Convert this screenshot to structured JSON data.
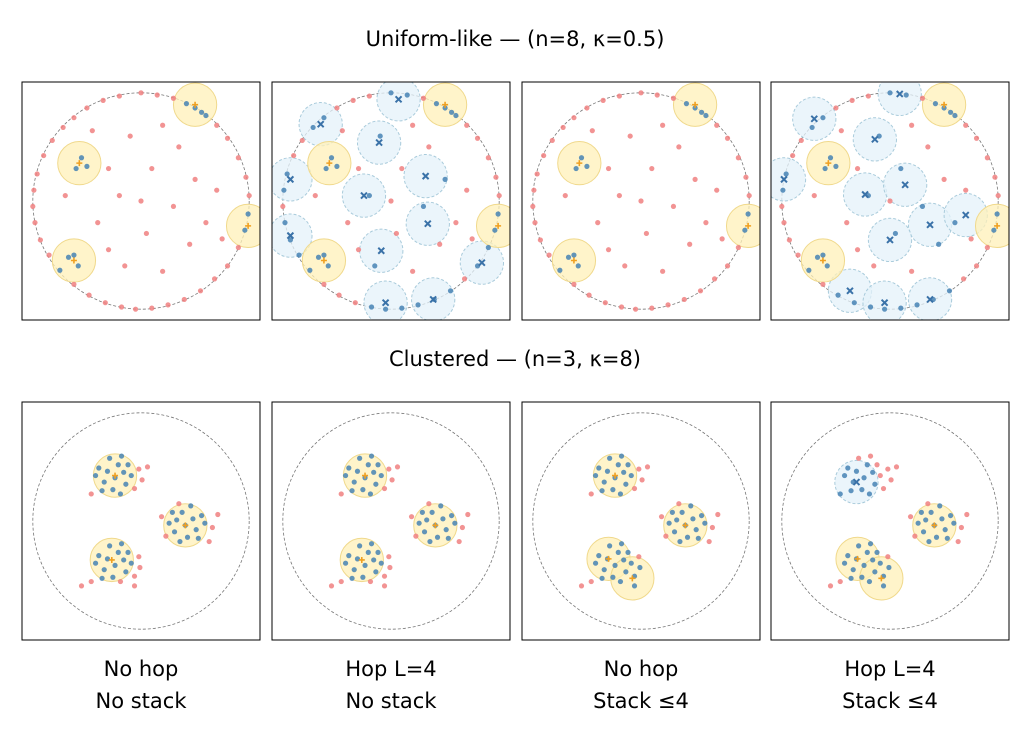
{
  "column_labels": [
    [
      "No hop",
      "No stack"
    ],
    [
      "Hop L=4",
      "No stack"
    ],
    [
      "No hop",
      "Stack ≤4"
    ],
    [
      "Hop L=4",
      "Stack ≤4"
    ]
  ],
  "colors": {
    "covered": "#4682b4",
    "uncovered": "#f08080",
    "station": "#fff0b8",
    "station_edge": "#f0d98c",
    "station_center": "#f0a020",
    "hop": "#e4f2f9",
    "hop_edge": "#a9cbdb",
    "hop_center": "#3a72a8"
  },
  "chart_data": [
    {
      "type": "scatter",
      "title": "Uniform-like — (n=8, κ=0.5)",
      "xlim": [
        -1.1,
        1.1
      ],
      "ylim": [
        -1.1,
        1.1
      ],
      "points": {
        "x": [
          0.5,
          0.42,
          0.56,
          0.6,
          0.3,
          0.15,
          0,
          -0.2,
          -0.35,
          -0.5,
          -0.62,
          -0.72,
          -0.82,
          -0.9,
          -0.96,
          -0.99,
          -1,
          -0.98,
          -0.93,
          -0.85,
          -0.75,
          -0.62,
          -0.48,
          -0.33,
          -0.18,
          -0.05,
          0.1,
          0.25,
          0.4,
          0.55,
          0.68,
          0.8,
          0.9,
          0.96,
          0.99,
          1,
          0.97,
          0.9,
          0.8,
          0.7,
          -0.55,
          -0.6,
          -0.5,
          -0.62,
          -0.58,
          -0.67,
          0.2,
          -0.1,
          0.35,
          -0.3,
          0.1,
          0.5,
          -0.2,
          0.3,
          0.7,
          -0.7,
          -0.4,
          0.05,
          0.45,
          -0.15,
          0.2,
          0.6,
          -0.45,
          0.0,
          0.75,
          -0.3
        ],
        "y": [
          0.86,
          0.9,
          0.82,
          0.79,
          0.95,
          0.98,
          1,
          0.97,
          0.93,
          0.86,
          0.77,
          0.68,
          0.56,
          0.42,
          0.25,
          0.1,
          -0.05,
          -0.2,
          -0.36,
          -0.5,
          -0.64,
          -0.77,
          -0.87,
          -0.94,
          -0.98,
          -1,
          -0.99,
          -0.96,
          -0.91,
          -0.83,
          -0.72,
          -0.6,
          -0.43,
          -0.27,
          -0.12,
          0.05,
          0.22,
          0.4,
          0.58,
          0.7,
          0.4,
          0.3,
          0.32,
          -0.5,
          -0.6,
          -0.52,
          0.7,
          0.6,
          0.5,
          0.3,
          0.3,
          0.2,
          0.05,
          -0.05,
          0.1,
          0.05,
          -0.2,
          -0.3,
          -0.4,
          -0.6,
          -0.65,
          -0.2,
          0.65,
          0.0,
          -0.35,
          -0.45
        ]
      },
      "panels": [
        {
          "stations": {
            "x": [
              0.5,
              -0.57,
              0.99,
              -0.62
            ],
            "y": [
              0.89,
              0.35,
              -0.23,
              -0.55
            ],
            "r": [
              0.2,
              0.2,
              0.2,
              0.2
            ]
          },
          "hops": {
            "x": [],
            "y": [],
            "r": []
          }
        },
        {
          "stations": {
            "x": [
              0.5,
              -0.57,
              0.99,
              -0.62
            ],
            "y": [
              0.89,
              0.35,
              -0.23,
              -0.55
            ],
            "r": [
              0.2,
              0.2,
              0.2,
              0.2
            ]
          },
          "hops": {
            "x": [
              -0.65,
              -0.11,
              0.07,
              -0.93,
              -0.25,
              0.32,
              0.34,
              -0.09,
              -0.93,
              0.84,
              0.39,
              -0.05
            ],
            "y": [
              0.71,
              0.54,
              0.94,
              0.2,
              0.05,
              0.23,
              -0.21,
              -0.46,
              -0.32,
              -0.57,
              -0.91,
              -0.94
            ],
            "r": [
              0.2,
              0.2,
              0.2,
              0.2,
              0.2,
              0.2,
              0.2,
              0.2,
              0.2,
              0.2,
              0.2,
              0.2
            ]
          }
        },
        {
          "stations": {
            "x": [
              0.5,
              -0.57,
              0.99,
              -0.62
            ],
            "y": [
              0.89,
              0.35,
              -0.23,
              -0.55
            ],
            "r": [
              0.2,
              0.2,
              0.2,
              0.2
            ]
          },
          "hops": {
            "x": [],
            "y": [],
            "r": []
          }
        },
        {
          "stations": {
            "x": [
              0.5,
              -0.57,
              0.99,
              -0.62
            ],
            "y": [
              0.89,
              0.35,
              -0.23,
              -0.55
            ],
            "r": [
              0.2,
              0.2,
              0.2,
              0.2
            ]
          },
          "hops": {
            "x": [
              -0.7,
              -0.14,
              0.09,
              -0.98,
              -0.23,
              0.14,
              0.37,
              0,
              0.7,
              -0.37,
              -0.05,
              0.37
            ],
            "y": [
              0.76,
              0.57,
              0.99,
              0.2,
              0.06,
              0.15,
              -0.22,
              -0.36,
              -0.13,
              -0.83,
              -0.94,
              -0.91
            ],
            "r": [
              0.2,
              0.2,
              0.2,
              0.2,
              0.2,
              0.2,
              0.2,
              0.2,
              0.2,
              0.2,
              0.2,
              0.2
            ]
          }
        }
      ]
    },
    {
      "type": "scatter",
      "title": "Clustered — (n=3, κ=8)",
      "xlim": [
        -1.1,
        1.1
      ],
      "ylim": [
        -1.1,
        1.1
      ],
      "points": {
        "x": [
          -0.24,
          -0.16,
          -0.31,
          -0.14,
          -0.34,
          -0.21,
          -0.26,
          -0.09,
          -0.39,
          -0.19,
          -0.36,
          -0.12,
          -0.06,
          -0.42,
          -0.02,
          -0.29,
          0.01,
          -0.46,
          -0.18,
          0.06,
          0.41,
          0.33,
          0.48,
          0.31,
          0.51,
          0.38,
          0.43,
          0.26,
          0.56,
          0.36,
          0.53,
          0.29,
          0.23,
          0.59,
          0.19,
          0.46,
          0.66,
          0.63,
          0.35,
          0.71,
          -0.24,
          -0.16,
          -0.31,
          -0.14,
          -0.34,
          -0.21,
          -0.26,
          -0.09,
          -0.39,
          -0.19,
          -0.36,
          -0.12,
          -0.06,
          -0.42,
          -0.02,
          -0.29,
          -0.01,
          -0.46,
          -0.18,
          -0.06,
          -0.55
        ],
        "y": [
          0.4,
          0.45,
          0.46,
          0.34,
          0.36,
          0.52,
          0.29,
          0.42,
          0.49,
          0.25,
          0.28,
          0.52,
          0.3,
          0.42,
          0.48,
          0.58,
          0.38,
          0.25,
          0.6,
          0.5,
          -0.04,
          0.01,
          0.02,
          -0.1,
          -0.08,
          0.08,
          -0.15,
          -0.02,
          0.05,
          -0.19,
          -0.16,
          0.08,
          -0.14,
          -0.02,
          0.04,
          0.14,
          -0.06,
          -0.19,
          0.16,
          0.06,
          -0.41,
          -0.36,
          -0.35,
          -0.47,
          -0.45,
          -0.29,
          -0.52,
          -0.39,
          -0.32,
          -0.56,
          -0.53,
          -0.29,
          -0.51,
          -0.39,
          -0.33,
          -0.23,
          -0.43,
          -0.56,
          -0.21,
          -0.6,
          -0.6
        ]
      },
      "panels": [
        {
          "stations": {
            "x": [
              -0.24,
              0.41,
              -0.27
            ],
            "y": [
              0.42,
              -0.04,
              -0.36
            ],
            "r": [
              0.2,
              0.2,
              0.2
            ]
          },
          "hops": {
            "x": [],
            "y": [],
            "r": []
          }
        },
        {
          "stations": {
            "x": [
              -0.24,
              0.41,
              -0.27
            ],
            "y": [
              0.42,
              -0.04,
              -0.36
            ],
            "r": [
              0.2,
              0.2,
              0.2
            ]
          },
          "hops": {
            "x": [],
            "y": [],
            "r": []
          }
        },
        {
          "stations": {
            "x": [
              -0.24,
              0.41,
              -0.3,
              -0.08
            ],
            "y": [
              0.42,
              -0.04,
              -0.35,
              -0.53
            ],
            "r": [
              0.2,
              0.2,
              0.2,
              0.2
            ]
          },
          "hops": {
            "x": [],
            "y": [],
            "r": []
          }
        },
        {
          "stations": {
            "x": [
              0.41,
              -0.3,
              -0.08
            ],
            "y": [
              -0.04,
              -0.35,
              -0.53
            ],
            "r": [
              0.2,
              0.2,
              0.2
            ]
          },
          "hops": {
            "x": [
              -0.31
            ],
            "y": [
              0.36
            ],
            "r": [
              0.2
            ]
          }
        }
      ]
    }
  ]
}
